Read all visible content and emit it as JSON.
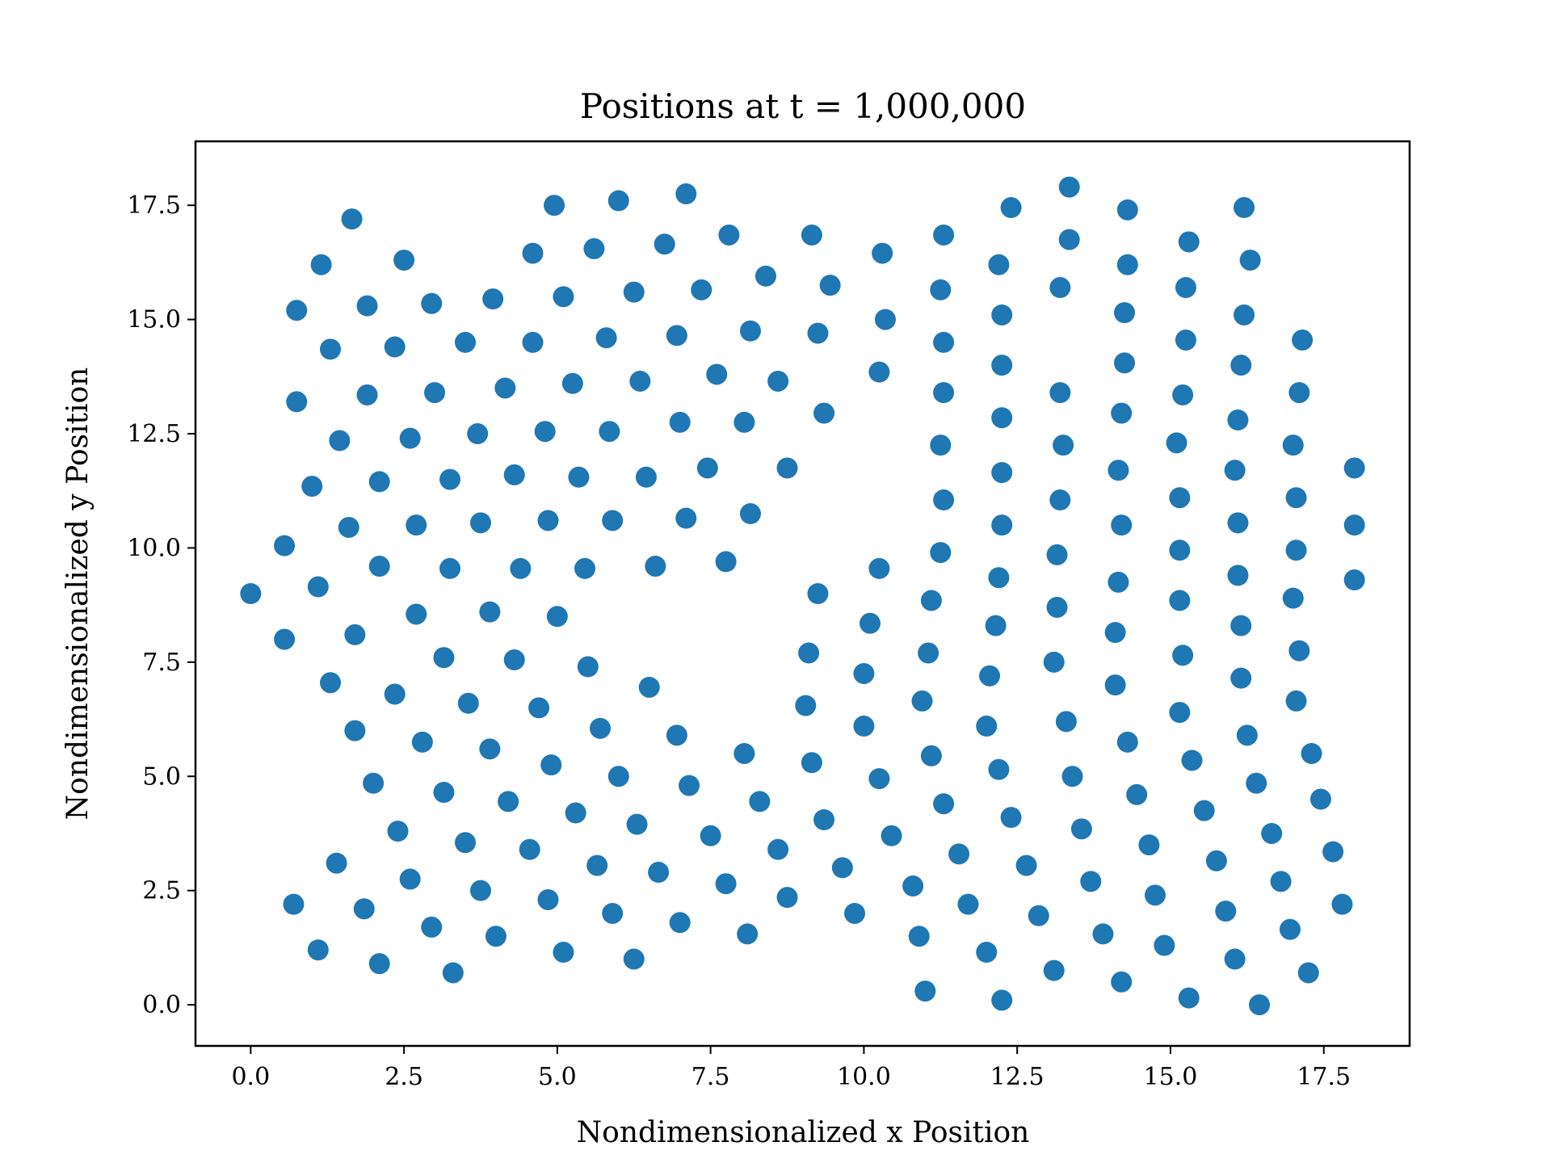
{
  "chart_data": {
    "type": "scatter",
    "title": "Positions at t = 1,000,000",
    "xlabel": "Nondimensionalized x Position",
    "ylabel": "Nondimensionalized y Position",
    "xlim": [
      -0.9,
      18.9
    ],
    "ylim": [
      -0.9,
      18.9
    ],
    "xticks": [
      "0.0",
      "2.5",
      "5.0",
      "7.5",
      "10.0",
      "12.5",
      "15.0",
      "17.5"
    ],
    "yticks": [
      "0.0",
      "2.5",
      "5.0",
      "7.5",
      "10.0",
      "12.5",
      "15.0",
      "17.5"
    ],
    "grid": false,
    "legend": "none",
    "marker_color": "#1f77b4",
    "points": [
      [
        0.0,
        9.0
      ],
      [
        0.55,
        10.05
      ],
      [
        0.55,
        8.0
      ],
      [
        0.7,
        2.2
      ],
      [
        0.75,
        15.2
      ],
      [
        0.75,
        13.2
      ],
      [
        1.0,
        11.35
      ],
      [
        1.1,
        9.15
      ],
      [
        1.1,
        1.2
      ],
      [
        1.15,
        16.2
      ],
      [
        1.3,
        7.05
      ],
      [
        1.3,
        14.35
      ],
      [
        1.4,
        3.1
      ],
      [
        1.45,
        12.35
      ],
      [
        1.6,
        10.45
      ],
      [
        1.65,
        17.2
      ],
      [
        1.7,
        6.0
      ],
      [
        1.7,
        8.1
      ],
      [
        1.85,
        2.1
      ],
      [
        1.9,
        15.3
      ],
      [
        1.9,
        13.35
      ],
      [
        2.0,
        4.85
      ],
      [
        2.1,
        11.45
      ],
      [
        2.1,
        9.6
      ],
      [
        2.1,
        0.9
      ],
      [
        2.35,
        6.8
      ],
      [
        2.35,
        14.4
      ],
      [
        2.4,
        3.8
      ],
      [
        2.5,
        16.3
      ],
      [
        2.6,
        12.4
      ],
      [
        2.6,
        2.75
      ],
      [
        2.7,
        10.5
      ],
      [
        2.7,
        8.55
      ],
      [
        2.8,
        5.75
      ],
      [
        2.95,
        15.35
      ],
      [
        2.95,
        1.7
      ],
      [
        3.0,
        13.4
      ],
      [
        3.15,
        7.6
      ],
      [
        3.15,
        4.65
      ],
      [
        3.25,
        11.5
      ],
      [
        3.25,
        9.55
      ],
      [
        3.3,
        0.7
      ],
      [
        3.5,
        3.55
      ],
      [
        3.5,
        14.5
      ],
      [
        3.55,
        6.6
      ],
      [
        3.7,
        12.5
      ],
      [
        3.75,
        2.5
      ],
      [
        3.75,
        10.55
      ],
      [
        3.9,
        8.6
      ],
      [
        3.9,
        5.6
      ],
      [
        3.95,
        15.45
      ],
      [
        4.0,
        1.5
      ],
      [
        4.15,
        13.5
      ],
      [
        4.2,
        4.45
      ],
      [
        4.3,
        11.6
      ],
      [
        4.3,
        7.55
      ],
      [
        4.4,
        9.55
      ],
      [
        4.55,
        3.4
      ],
      [
        4.6,
        16.45
      ],
      [
        4.6,
        14.5
      ],
      [
        4.7,
        6.5
      ],
      [
        4.8,
        12.55
      ],
      [
        4.85,
        10.6
      ],
      [
        4.85,
        2.3
      ],
      [
        4.9,
        5.25
      ],
      [
        4.95,
        17.5
      ],
      [
        5.0,
        8.5
      ],
      [
        5.1,
        15.5
      ],
      [
        5.1,
        1.15
      ],
      [
        5.25,
        13.6
      ],
      [
        5.3,
        4.2
      ],
      [
        5.35,
        11.55
      ],
      [
        5.45,
        9.55
      ],
      [
        5.5,
        7.4
      ],
      [
        5.6,
        16.55
      ],
      [
        5.65,
        3.05
      ],
      [
        5.7,
        6.05
      ],
      [
        5.8,
        14.6
      ],
      [
        5.85,
        12.55
      ],
      [
        5.9,
        10.6
      ],
      [
        5.9,
        2.0
      ],
      [
        6.0,
        17.6
      ],
      [
        6.0,
        5.0
      ],
      [
        6.25,
        15.6
      ],
      [
        6.25,
        1.0
      ],
      [
        6.3,
        3.95
      ],
      [
        6.35,
        13.65
      ],
      [
        6.45,
        11.55
      ],
      [
        6.5,
        6.95
      ],
      [
        6.6,
        9.6
      ],
      [
        6.65,
        2.9
      ],
      [
        6.75,
        16.65
      ],
      [
        6.95,
        14.65
      ],
      [
        6.95,
        5.9
      ],
      [
        7.0,
        12.75
      ],
      [
        7.0,
        1.8
      ],
      [
        7.1,
        10.65
      ],
      [
        7.1,
        17.75
      ],
      [
        7.15,
        4.8
      ],
      [
        7.35,
        15.65
      ],
      [
        7.45,
        11.75
      ],
      [
        7.5,
        3.7
      ],
      [
        7.6,
        13.8
      ],
      [
        7.75,
        9.7
      ],
      [
        7.75,
        2.65
      ],
      [
        7.8,
        16.85
      ],
      [
        8.05,
        5.5
      ],
      [
        8.05,
        12.75
      ],
      [
        8.1,
        1.55
      ],
      [
        8.15,
        14.75
      ],
      [
        8.15,
        10.75
      ],
      [
        8.3,
        4.45
      ],
      [
        8.4,
        15.95
      ],
      [
        8.6,
        13.65
      ],
      [
        8.6,
        3.4
      ],
      [
        8.75,
        11.75
      ],
      [
        8.75,
        2.35
      ],
      [
        9.05,
        6.55
      ],
      [
        9.1,
        7.7
      ],
      [
        9.15,
        16.85
      ],
      [
        9.15,
        5.3
      ],
      [
        9.25,
        14.7
      ],
      [
        9.25,
        9.0
      ],
      [
        9.35,
        4.05
      ],
      [
        9.35,
        12.95
      ],
      [
        9.45,
        15.75
      ],
      [
        9.65,
        3.0
      ],
      [
        9.85,
        2.0
      ],
      [
        10.0,
        7.25
      ],
      [
        10.0,
        6.1
      ],
      [
        10.1,
        8.35
      ],
      [
        10.25,
        4.95
      ],
      [
        10.25,
        13.85
      ],
      [
        10.25,
        9.55
      ],
      [
        10.3,
        16.45
      ],
      [
        10.35,
        15.0
      ],
      [
        10.45,
        3.7
      ],
      [
        10.8,
        2.6
      ],
      [
        10.9,
        1.5
      ],
      [
        10.95,
        6.65
      ],
      [
        11.0,
        0.3
      ],
      [
        11.05,
        7.7
      ],
      [
        11.1,
        5.45
      ],
      [
        11.1,
        8.85
      ],
      [
        11.25,
        9.9
      ],
      [
        11.25,
        12.25
      ],
      [
        11.25,
        15.65
      ],
      [
        11.3,
        4.4
      ],
      [
        11.3,
        11.05
      ],
      [
        11.3,
        16.85
      ],
      [
        11.3,
        14.5
      ],
      [
        11.3,
        13.4
      ],
      [
        11.55,
        3.3
      ],
      [
        11.7,
        2.2
      ],
      [
        12.0,
        1.15
      ],
      [
        12.0,
        6.1
      ],
      [
        12.05,
        7.2
      ],
      [
        12.15,
        8.3
      ],
      [
        12.2,
        16.2
      ],
      [
        12.2,
        9.35
      ],
      [
        12.2,
        5.15
      ],
      [
        12.25,
        11.65
      ],
      [
        12.25,
        10.5
      ],
      [
        12.25,
        12.85
      ],
      [
        12.25,
        15.1
      ],
      [
        12.25,
        14.0
      ],
      [
        12.25,
        0.1
      ],
      [
        12.4,
        17.45
      ],
      [
        12.4,
        4.1
      ],
      [
        12.65,
        3.05
      ],
      [
        12.85,
        1.95
      ],
      [
        13.1,
        0.75
      ],
      [
        13.1,
        7.5
      ],
      [
        13.15,
        9.85
      ],
      [
        13.15,
        8.7
      ],
      [
        13.2,
        11.05
      ],
      [
        13.2,
        13.4
      ],
      [
        13.2,
        15.7
      ],
      [
        13.25,
        12.25
      ],
      [
        13.3,
        6.2
      ],
      [
        13.35,
        16.75
      ],
      [
        13.35,
        17.9
      ],
      [
        13.4,
        5.0
      ],
      [
        13.55,
        3.85
      ],
      [
        13.7,
        2.7
      ],
      [
        13.9,
        1.55
      ],
      [
        14.1,
        8.15
      ],
      [
        14.1,
        7.0
      ],
      [
        14.15,
        9.25
      ],
      [
        14.15,
        11.7
      ],
      [
        14.2,
        12.95
      ],
      [
        14.2,
        0.5
      ],
      [
        14.2,
        10.5
      ],
      [
        14.25,
        14.05
      ],
      [
        14.25,
        15.15
      ],
      [
        14.3,
        16.2
      ],
      [
        14.3,
        5.75
      ],
      [
        14.3,
        17.4
      ],
      [
        14.45,
        4.6
      ],
      [
        14.65,
        3.5
      ],
      [
        14.75,
        2.4
      ],
      [
        14.9,
        1.3
      ],
      [
        15.1,
        12.3
      ],
      [
        15.15,
        9.95
      ],
      [
        15.15,
        11.1
      ],
      [
        15.15,
        6.4
      ],
      [
        15.15,
        8.85
      ],
      [
        15.2,
        7.65
      ],
      [
        15.2,
        13.35
      ],
      [
        15.25,
        15.7
      ],
      [
        15.25,
        14.55
      ],
      [
        15.3,
        16.7
      ],
      [
        15.3,
        0.15
      ],
      [
        15.35,
        5.35
      ],
      [
        15.55,
        4.25
      ],
      [
        15.75,
        3.15
      ],
      [
        15.9,
        2.05
      ],
      [
        16.05,
        1.0
      ],
      [
        16.05,
        11.7
      ],
      [
        16.1,
        9.4
      ],
      [
        16.1,
        10.55
      ],
      [
        16.1,
        12.8
      ],
      [
        16.15,
        14.0
      ],
      [
        16.15,
        8.3
      ],
      [
        16.15,
        7.15
      ],
      [
        16.2,
        17.45
      ],
      [
        16.2,
        15.1
      ],
      [
        16.25,
        5.9
      ],
      [
        16.3,
        16.3
      ],
      [
        16.4,
        4.85
      ],
      [
        16.45,
        0.0
      ],
      [
        16.65,
        3.75
      ],
      [
        16.8,
        2.7
      ],
      [
        16.95,
        1.65
      ],
      [
        17.0,
        12.25
      ],
      [
        17.0,
        8.9
      ],
      [
        17.05,
        11.1
      ],
      [
        17.05,
        9.95
      ],
      [
        17.05,
        6.65
      ],
      [
        17.1,
        13.4
      ],
      [
        17.1,
        7.75
      ],
      [
        17.15,
        14.55
      ],
      [
        17.25,
        0.7
      ],
      [
        17.3,
        5.5
      ],
      [
        17.45,
        4.5
      ],
      [
        17.65,
        3.35
      ],
      [
        17.8,
        2.2
      ],
      [
        18.0,
        9.3
      ],
      [
        18.0,
        10.5
      ],
      [
        18.0,
        11.75
      ]
    ]
  }
}
